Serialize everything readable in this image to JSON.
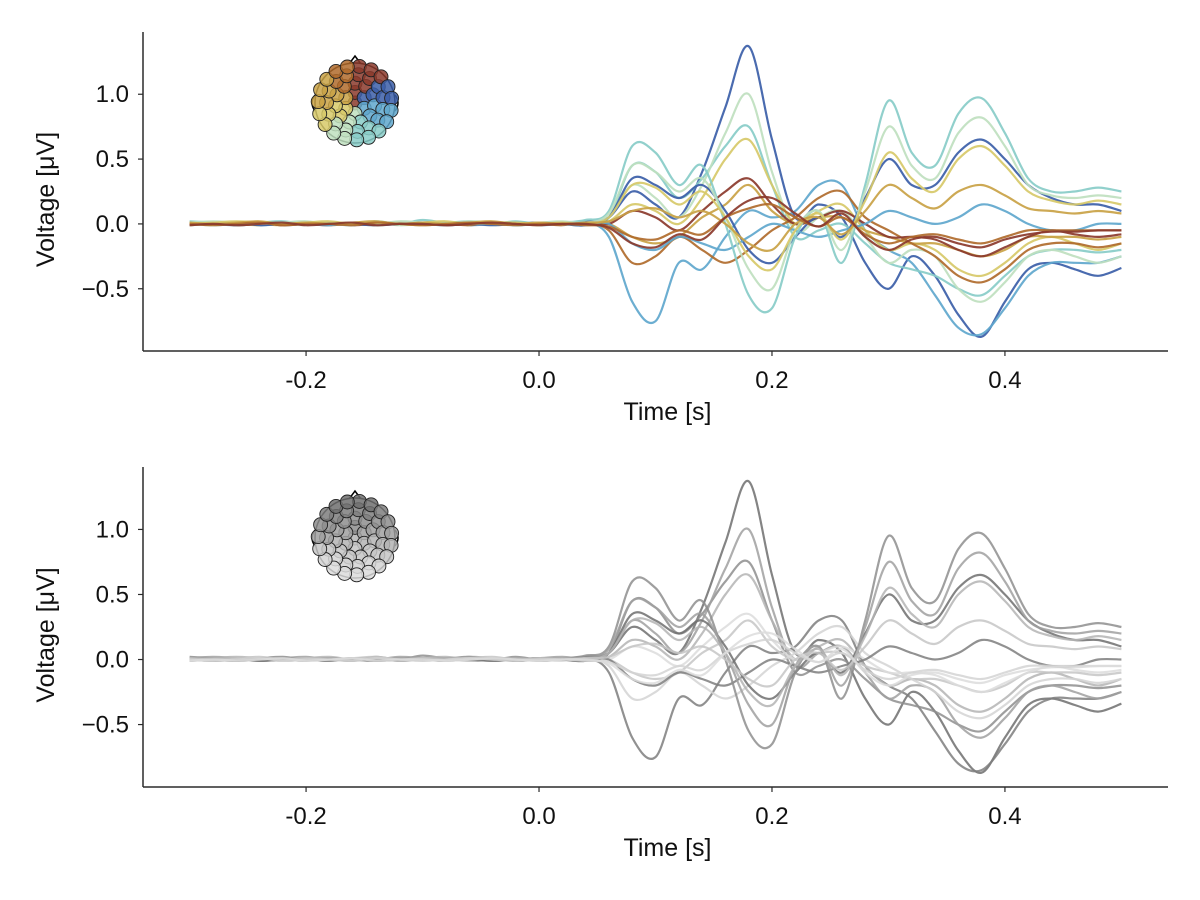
{
  "chart_data": [
    {
      "type": "line",
      "title": "",
      "xlabel": "Time [s]",
      "ylabel": "Voltage [μV]",
      "xlim": [
        -0.34,
        0.54
      ],
      "ylim": [
        -0.98,
        1.48
      ],
      "xticks": [
        -0.2,
        0.0,
        0.2,
        0.4
      ],
      "xtick_labels": [
        "-0.2",
        "0.0",
        "0.2",
        "0.4"
      ],
      "yticks": [
        -0.5,
        0.0,
        0.5,
        1.0
      ],
      "ytick_labels": [
        "−0.5",
        "0.0",
        "0.5",
        "1.0"
      ],
      "grid": false,
      "color_mode": "topographic",
      "palette": [
        "#3b5ea8",
        "#5fa7cd",
        "#88ccc8",
        "#bfe0bf",
        "#d7c969",
        "#c9a245",
        "#b06b2c",
        "#8b3a2c"
      ],
      "inset": "channel-position-topoplot",
      "x": [
        -0.3,
        -0.28,
        -0.26,
        -0.24,
        -0.22,
        -0.2,
        -0.18,
        -0.16,
        -0.14,
        -0.12,
        -0.1,
        -0.08,
        -0.06,
        -0.04,
        -0.02,
        0.0,
        0.02,
        0.04,
        0.06,
        0.08,
        0.1,
        0.12,
        0.14,
        0.16,
        0.18,
        0.2,
        0.22,
        0.24,
        0.26,
        0.28,
        0.3,
        0.32,
        0.34,
        0.36,
        0.38,
        0.4,
        0.42,
        0.44,
        0.46,
        0.48,
        0.5
      ],
      "series": [
        {
          "values": [
            0.0,
            0.01,
            -0.01,
            0.0,
            0.01,
            0.0,
            -0.01,
            0.01,
            0.0,
            0.01,
            0.0,
            -0.01,
            0.0,
            0.01,
            -0.01,
            0.0,
            0.0,
            0.02,
            0.05,
            0.25,
            0.15,
            0.05,
            0.4,
            0.9,
            1.37,
            0.65,
            0.05,
            0.15,
            0.05,
            -0.3,
            -0.5,
            -0.25,
            -0.4,
            -0.7,
            -0.87,
            -0.6,
            -0.35,
            -0.3,
            -0.35,
            -0.4,
            -0.34
          ]
        },
        {
          "values": [
            -0.01,
            0.0,
            0.01,
            -0.01,
            0.0,
            0.01,
            0.0,
            -0.01,
            0.01,
            0.0,
            0.0,
            0.01,
            -0.01,
            0.0,
            0.01,
            -0.01,
            0.0,
            0.01,
            -0.1,
            -0.6,
            -0.75,
            -0.3,
            -0.35,
            -0.1,
            0.1,
            0.05,
            0.1,
            0.3,
            0.3,
            -0.05,
            -0.2,
            -0.3,
            -0.55,
            -0.8,
            -0.85,
            -0.65,
            -0.4,
            -0.3,
            -0.3,
            -0.3,
            -0.25
          ]
        },
        {
          "values": [
            0.01,
            -0.01,
            0.0,
            0.01,
            -0.01,
            0.0,
            0.01,
            0.0,
            -0.01,
            0.01,
            0.0,
            -0.01,
            0.01,
            0.0,
            0.0,
            0.01,
            0.0,
            -0.01,
            0.05,
            0.45,
            0.4,
            0.2,
            0.35,
            0.6,
            0.75,
            0.3,
            -0.1,
            -0.05,
            0.0,
            -0.15,
            -0.3,
            -0.35,
            -0.4,
            -0.5,
            -0.55,
            -0.4,
            -0.25,
            -0.2,
            -0.2,
            -0.22,
            -0.2
          ]
        },
        {
          "values": [
            0.0,
            -0.01,
            0.01,
            0.0,
            0.0,
            -0.01,
            0.01,
            0.0,
            0.01,
            -0.01,
            0.0,
            0.01,
            0.0,
            -0.01,
            0.0,
            0.01,
            0.0,
            0.0,
            0.05,
            0.3,
            0.2,
            0.05,
            0.3,
            0.7,
            1.0,
            0.4,
            -0.05,
            0.05,
            0.1,
            -0.1,
            -0.3,
            -0.2,
            -0.25,
            -0.5,
            -0.6,
            -0.45,
            -0.25,
            -0.2,
            -0.25,
            -0.3,
            -0.25
          ]
        },
        {
          "values": [
            0.01,
            0.0,
            0.0,
            -0.01,
            0.01,
            0.0,
            0.0,
            0.01,
            -0.01,
            0.0,
            0.01,
            0.0,
            0.0,
            0.01,
            -0.01,
            0.0,
            0.01,
            0.0,
            0.02,
            0.15,
            0.1,
            0.0,
            0.2,
            0.5,
            0.65,
            0.3,
            0.0,
            0.1,
            0.15,
            -0.05,
            -0.2,
            -0.15,
            -0.2,
            -0.35,
            -0.4,
            -0.3,
            -0.15,
            -0.1,
            -0.15,
            -0.2,
            -0.15
          ]
        },
        {
          "values": [
            -0.01,
            0.0,
            0.01,
            0.0,
            -0.01,
            0.01,
            0.0,
            0.0,
            0.01,
            0.0,
            -0.01,
            0.0,
            0.01,
            0.0,
            0.0,
            -0.01,
            0.01,
            0.0,
            0.0,
            -0.1,
            -0.15,
            -0.1,
            0.05,
            0.15,
            0.3,
            0.1,
            0.0,
            0.05,
            0.05,
            -0.05,
            -0.1,
            -0.15,
            -0.15,
            -0.2,
            -0.25,
            -0.2,
            -0.1,
            -0.1,
            -0.1,
            -0.12,
            -0.1
          ]
        },
        {
          "values": [
            0.0,
            0.01,
            -0.01,
            0.0,
            0.01,
            0.0,
            -0.01,
            0.0,
            0.0,
            0.01,
            0.0,
            0.0,
            -0.01,
            0.01,
            0.0,
            0.0,
            -0.01,
            0.01,
            -0.05,
            -0.3,
            -0.25,
            -0.1,
            -0.2,
            -0.3,
            -0.2,
            -0.05,
            0.05,
            0.2,
            0.25,
            0.05,
            -0.05,
            -0.15,
            -0.25,
            -0.4,
            -0.45,
            -0.35,
            -0.2,
            -0.15,
            -0.15,
            -0.18,
            -0.15
          ]
        },
        {
          "values": [
            0.01,
            0.0,
            0.0,
            0.01,
            -0.01,
            0.0,
            0.01,
            -0.01,
            0.0,
            0.0,
            0.01,
            -0.01,
            0.0,
            0.0,
            0.01,
            0.0,
            0.0,
            0.01,
            0.0,
            0.1,
            0.05,
            -0.05,
            0.1,
            0.25,
            0.35,
            0.15,
            0.0,
            0.05,
            0.1,
            0.0,
            -0.1,
            -0.1,
            -0.12,
            -0.2,
            -0.25,
            -0.18,
            -0.1,
            -0.05,
            -0.08,
            -0.1,
            -0.08
          ]
        },
        {
          "values": [
            0.0,
            0.0,
            0.01,
            -0.01,
            0.0,
            0.0,
            0.01,
            0.0,
            -0.01,
            0.0,
            0.01,
            0.0,
            0.0,
            -0.01,
            0.0,
            0.01,
            0.0,
            -0.01,
            0.05,
            0.35,
            0.3,
            0.2,
            0.3,
            0.1,
            -0.2,
            -0.3,
            -0.1,
            0.05,
            -0.1,
            0.2,
            0.5,
            0.3,
            0.3,
            0.55,
            0.65,
            0.5,
            0.3,
            0.2,
            0.15,
            0.15,
            0.1
          ]
        },
        {
          "values": [
            0.01,
            0.0,
            -0.01,
            0.01,
            0.0,
            0.0,
            -0.01,
            0.01,
            0.0,
            0.0,
            0.0,
            0.01,
            0.0,
            0.0,
            -0.01,
            0.0,
            0.01,
            0.0,
            0.0,
            -0.15,
            -0.2,
            -0.1,
            -0.15,
            -0.2,
            -0.1,
            0.0,
            -0.05,
            -0.1,
            -0.05,
            0.0,
            0.1,
            0.05,
            0.0,
            0.05,
            0.15,
            0.1,
            0.0,
            -0.05,
            -0.05,
            0.0,
            0.0
          ]
        },
        {
          "values": [
            0.02,
            0.01,
            0.0,
            0.01,
            0.02,
            0.0,
            0.01,
            -0.01,
            0.02,
            0.0,
            0.03,
            0.01,
            0.02,
            0.0,
            0.02,
            0.0,
            0.01,
            0.03,
            0.1,
            0.6,
            0.55,
            0.3,
            0.45,
            0.0,
            -0.55,
            -0.65,
            -0.1,
            0.1,
            -0.3,
            0.3,
            0.95,
            0.55,
            0.45,
            0.85,
            0.97,
            0.7,
            0.35,
            0.25,
            0.25,
            0.28,
            0.25
          ]
        },
        {
          "values": [
            0.01,
            0.02,
            0.01,
            0.0,
            0.01,
            0.02,
            0.0,
            0.01,
            0.0,
            0.02,
            0.01,
            0.0,
            0.02,
            0.01,
            0.0,
            0.01,
            0.02,
            0.01,
            0.08,
            0.45,
            0.4,
            0.25,
            0.35,
            0.05,
            -0.35,
            -0.5,
            -0.05,
            0.1,
            -0.2,
            0.25,
            0.75,
            0.45,
            0.35,
            0.7,
            0.82,
            0.6,
            0.3,
            0.22,
            0.2,
            0.22,
            0.2
          ]
        },
        {
          "values": [
            0.0,
            0.01,
            0.02,
            0.01,
            0.0,
            0.01,
            0.02,
            0.0,
            0.01,
            0.0,
            0.01,
            0.02,
            0.0,
            0.01,
            0.01,
            0.0,
            0.01,
            0.0,
            0.05,
            0.3,
            0.28,
            0.15,
            0.25,
            0.05,
            -0.25,
            -0.35,
            -0.05,
            0.08,
            -0.12,
            0.18,
            0.55,
            0.35,
            0.25,
            0.5,
            0.6,
            0.45,
            0.25,
            0.18,
            0.15,
            0.18,
            0.15
          ]
        },
        {
          "values": [
            0.01,
            0.0,
            0.01,
            0.02,
            0.0,
            0.01,
            0.0,
            0.01,
            0.02,
            0.0,
            0.01,
            0.0,
            0.01,
            0.02,
            0.0,
            0.01,
            0.0,
            0.01,
            0.02,
            0.1,
            0.12,
            0.05,
            0.1,
            0.0,
            -0.15,
            -0.2,
            0.0,
            0.05,
            -0.08,
            0.1,
            0.3,
            0.2,
            0.12,
            0.25,
            0.3,
            0.22,
            0.12,
            0.1,
            0.08,
            0.1,
            0.08
          ]
        },
        {
          "values": [
            0.0,
            -0.01,
            0.0,
            0.01,
            -0.01,
            0.0,
            0.0,
            -0.01,
            0.01,
            0.0,
            -0.01,
            0.0,
            0.01,
            0.0,
            -0.01,
            0.0,
            0.0,
            -0.01,
            -0.02,
            -0.1,
            -0.12,
            -0.05,
            -0.08,
            0.05,
            0.12,
            0.15,
            0.05,
            -0.02,
            0.05,
            -0.08,
            -0.15,
            -0.1,
            -0.08,
            -0.12,
            -0.15,
            -0.1,
            -0.05,
            -0.05,
            -0.05,
            -0.05,
            -0.05
          ]
        },
        {
          "values": [
            -0.01,
            0.0,
            -0.01,
            0.0,
            0.01,
            -0.01,
            0.0,
            0.01,
            -0.01,
            0.0,
            0.0,
            -0.01,
            0.0,
            0.01,
            0.0,
            -0.01,
            0.0,
            0.0,
            -0.03,
            -0.15,
            -0.18,
            -0.08,
            -0.12,
            0.05,
            0.18,
            0.2,
            0.08,
            -0.02,
            0.08,
            -0.1,
            -0.2,
            -0.12,
            -0.1,
            -0.15,
            -0.18,
            -0.12,
            -0.08,
            -0.06,
            -0.06,
            -0.05,
            -0.05
          ]
        }
      ]
    },
    {
      "type": "line",
      "title": "",
      "xlabel": "Time [s]",
      "ylabel": "Voltage [μV]",
      "xlim": [
        -0.34,
        0.54
      ],
      "ylim": [
        -0.98,
        1.48
      ],
      "xticks": [
        -0.2,
        0.0,
        0.2,
        0.4
      ],
      "xtick_labels": [
        "-0.2",
        "0.0",
        "0.2",
        "0.4"
      ],
      "yticks": [
        -0.5,
        0.0,
        0.5,
        1.0
      ],
      "ytick_labels": [
        "−0.5",
        "0.0",
        "0.5",
        "1.0"
      ],
      "grid": false,
      "color_mode": "grayscale",
      "palette": [
        "#6e6e6e",
        "#7e7e7e",
        "#8e8e8e",
        "#a0a0a0",
        "#b4b4b4",
        "#c6c6c6",
        "#d4d4d4",
        "#dcdcdc"
      ],
      "inset": "channel-position-topoplot",
      "same_data_as": "first chart"
    }
  ]
}
